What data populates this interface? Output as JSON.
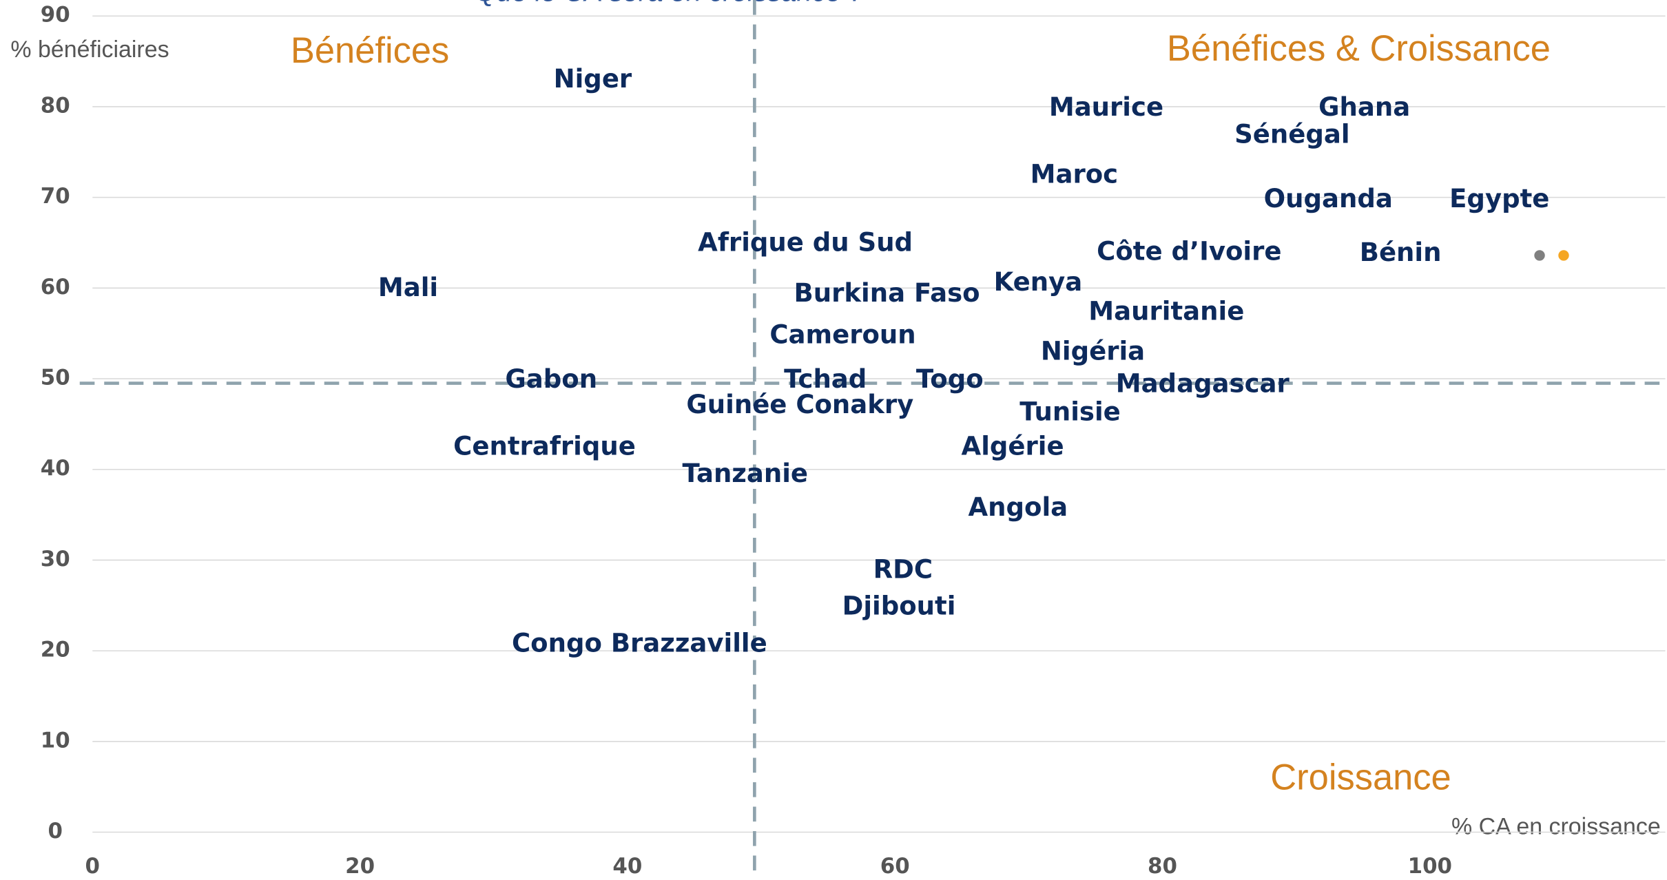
{
  "chart_data": {
    "type": "scatter",
    "title": "Que le CA sera en croissance ?",
    "x_label": "% CA en croissance",
    "y_label": "% bénéficiaires",
    "annotations": [
      "Bénéfices",
      "Bénéfices & Croissance",
      "Croissance"
    ],
    "xlim": [
      0,
      117.6
    ],
    "ylim": [
      0,
      90
    ],
    "xticks": [
      0,
      20,
      40,
      60,
      80,
      100
    ],
    "yticks": [
      0,
      10,
      20,
      30,
      40,
      50,
      60,
      70,
      80,
      90
    ],
    "grid": true,
    "reference_lines": {
      "x": 49.5,
      "y": 49.5
    },
    "series": [
      {
        "color": "#0d2a5c",
        "labels": [
          "Niger",
          "Maurice",
          "Ghana",
          "Sénégal",
          "Maroc",
          "Ouganda",
          "Egypte",
          "Côte d’Ivoire",
          "Bénin",
          "Afrique du Sud",
          "Mali",
          "Burkina Faso",
          "Kenya",
          "Mauritanie",
          "Cameroun",
          "Nigéria",
          "Gabon",
          "Tchad",
          "Togo",
          "Madagascar",
          "Guinée Conakry",
          "Tunisie",
          "Centrafrique",
          "Tanzanie",
          "Algérie",
          "Angola",
          "RDC",
          "Djibouti",
          "Congo Brazzaville"
        ],
        "x": [
          37.4,
          75.8,
          95.1,
          89.7,
          73.4,
          92.4,
          105.2,
          82,
          97.8,
          53.3,
          23.6,
          59.4,
          70.7,
          80.3,
          56.1,
          74.8,
          34.3,
          54.8,
          64.1,
          83,
          52.9,
          73.1,
          33.8,
          48.8,
          68.8,
          69.2,
          60.6,
          60.3,
          40.9
        ],
        "y": [
          82.9,
          79.8,
          79.8,
          76.8,
          72.4,
          69.7,
          69.7,
          63.9,
          63.8,
          64.9,
          59.9,
          59.3,
          60.5,
          57.3,
          54.7,
          52.9,
          49.8,
          49.8,
          49.8,
          49.3,
          47,
          46.2,
          42.4,
          39.4,
          42.4,
          35.7,
          28.8,
          24.8,
          20.7
        ]
      },
      {
        "color": "#808080",
        "x": [
          108.2
        ],
        "y": [
          63.6
        ]
      },
      {
        "color": "#f5a623",
        "x": [
          110
        ],
        "y": [
          63.6
        ]
      }
    ]
  }
}
